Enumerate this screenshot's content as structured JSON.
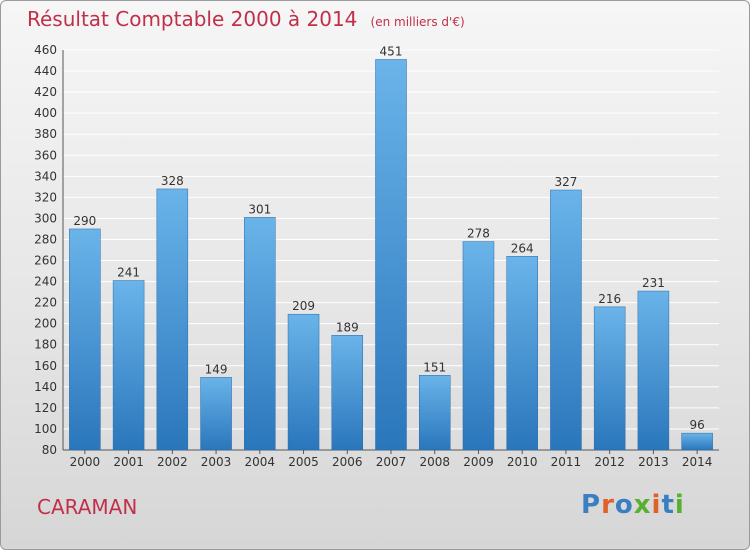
{
  "header": {
    "title": "Résultat Comptable 2000 à 2014",
    "subtitle": "(en milliers d'€)"
  },
  "footer": {
    "town": "CARAMAN"
  },
  "logo": {
    "text": "Proxiti",
    "letter_colors": [
      "#3a7fc2",
      "#e0602a",
      "#3a7fc2",
      "#58b030",
      "#e0602a",
      "#3a7fc2",
      "#58b030"
    ]
  },
  "colors": {
    "title": "#c0304a",
    "bar_top": "#6ab4ea",
    "bar_bottom": "#2a76bb",
    "grid": "#ffffff",
    "axis": "#555555"
  },
  "chart_data": {
    "type": "bar",
    "title": "Résultat Comptable 2000 à 2014",
    "subtitle": "(en milliers d'€)",
    "xlabel": "",
    "ylabel": "",
    "categories": [
      "2000",
      "2001",
      "2002",
      "2003",
      "2004",
      "2005",
      "2006",
      "2007",
      "2008",
      "2009",
      "2010",
      "2011",
      "2012",
      "2013",
      "2014"
    ],
    "values": [
      290,
      241,
      328,
      149,
      301,
      209,
      189,
      451,
      151,
      278,
      264,
      327,
      216,
      231,
      96
    ],
    "ylim": [
      80,
      460
    ],
    "yticks": [
      80,
      100,
      120,
      140,
      160,
      180,
      200,
      220,
      240,
      260,
      280,
      300,
      320,
      340,
      360,
      380,
      400,
      420,
      440,
      460
    ],
    "grid": true,
    "legend": "none"
  }
}
